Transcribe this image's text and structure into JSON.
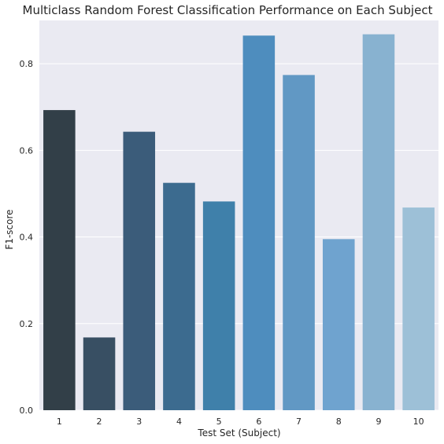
{
  "chart_data": {
    "type": "bar",
    "title": "Multiclass Random Forest Classification Performance on Each Subject",
    "xlabel": "Test Set (Subject)",
    "ylabel": "F1-score",
    "categories": [
      "1",
      "2",
      "3",
      "4",
      "5",
      "6",
      "7",
      "8",
      "9",
      "10"
    ],
    "values": [
      0.693,
      0.168,
      0.643,
      0.525,
      0.482,
      0.865,
      0.774,
      0.395,
      0.868,
      0.468
    ],
    "ylim": [
      0,
      0.9
    ],
    "yticks": [
      0,
      0.2,
      0.4,
      0.6,
      0.8
    ],
    "yticklabels": [
      "0.0",
      "0.2",
      "0.4",
      "0.6",
      "0.8"
    ],
    "grid": true,
    "background_color": "#eaeaf2",
    "grid_color": "#ffffff",
    "bar_colors": [
      "#323f48",
      "#384f63",
      "#3b5c7a",
      "#3c6b8f",
      "#3f80aa",
      "#4e8dbe",
      "#6198c4",
      "#6fa3cf",
      "#88b2d0",
      "#9dc0d7"
    ]
  }
}
